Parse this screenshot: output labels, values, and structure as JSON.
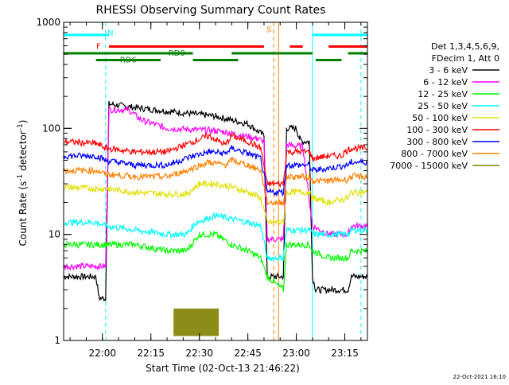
{
  "chart_data": {
    "type": "line",
    "title": "RHESSI Observing Summary Count Rates",
    "xlabel": "Start Time (02-Oct-13 21:46:22)",
    "ylabel_main": "Count Rate (s",
    "ylabel_sup1": "-1",
    "ylabel_mid": " detector",
    "ylabel_sup2": "-1",
    "ylabel_end": ")",
    "y_scale": "log",
    "ylim": [
      1,
      1000
    ],
    "xlim_minutes": [
      -12,
      82
    ],
    "x_ticks": [
      {
        "m": 0,
        "label": "22:00"
      },
      {
        "m": 15,
        "label": "22:15"
      },
      {
        "m": 30,
        "label": "22:30"
      },
      {
        "m": 45,
        "label": "22:45"
      },
      {
        "m": 60,
        "label": "23:00"
      },
      {
        "m": 75,
        "label": "23:15"
      }
    ],
    "y_ticks": [
      {
        "v": 1,
        "label": "1"
      },
      {
        "v": 10,
        "label": "10"
      },
      {
        "v": 100,
        "label": "100"
      },
      {
        "v": 1000,
        "label": "1000"
      }
    ],
    "legend": {
      "placement": "right",
      "header": [
        "Det 1,3,4,5,6,9,",
        "FDecim 1, Att 0"
      ]
    },
    "series": [
      {
        "name": "3 - 6 keV",
        "color": "#000000",
        "points": [
          [
            -12,
            4
          ],
          [
            -2,
            4
          ],
          [
            -1,
            2.5
          ],
          [
            1,
            2.5
          ],
          [
            2,
            170
          ],
          [
            8,
            160
          ],
          [
            20,
            145
          ],
          [
            35,
            130
          ],
          [
            45,
            110
          ],
          [
            48,
            95
          ],
          [
            50,
            85
          ],
          [
            51,
            4
          ],
          [
            56,
            4
          ],
          [
            57,
            100
          ],
          [
            60,
            100
          ],
          [
            61,
            80
          ],
          [
            62,
            75
          ],
          [
            64,
            75
          ],
          [
            65,
            4
          ],
          [
            66,
            3
          ],
          [
            76,
            3
          ],
          [
            77,
            4
          ],
          [
            82,
            4
          ]
        ]
      },
      {
        "name": "6 - 12 keV",
        "color": "#ff00ff",
        "points": [
          [
            -12,
            5
          ],
          [
            -2,
            5
          ],
          [
            -1,
            5
          ],
          [
            1,
            5
          ],
          [
            2,
            150
          ],
          [
            8,
            150
          ],
          [
            12,
            120
          ],
          [
            20,
            100
          ],
          [
            35,
            95
          ],
          [
            40,
            90
          ],
          [
            48,
            80
          ],
          [
            50,
            75
          ],
          [
            51,
            9
          ],
          [
            56,
            9
          ],
          [
            57,
            70
          ],
          [
            60,
            68
          ],
          [
            62,
            68
          ],
          [
            65,
            12
          ],
          [
            70,
            10
          ],
          [
            76,
            10
          ],
          [
            77,
            12
          ],
          [
            82,
            12
          ]
        ]
      },
      {
        "name": "12 - 25 keV",
        "color": "#00ff00",
        "points": [
          [
            -12,
            8
          ],
          [
            -2,
            8
          ],
          [
            0,
            8
          ],
          [
            1,
            8
          ],
          [
            2,
            8
          ],
          [
            10,
            8
          ],
          [
            20,
            7
          ],
          [
            26,
            7
          ],
          [
            30,
            10
          ],
          [
            35,
            10
          ],
          [
            40,
            8
          ],
          [
            45,
            7
          ],
          [
            49,
            6
          ],
          [
            51,
            4
          ],
          [
            56,
            3
          ],
          [
            57,
            8
          ],
          [
            64,
            8
          ],
          [
            65,
            7
          ],
          [
            70,
            6
          ],
          [
            76,
            6
          ],
          [
            77,
            7
          ],
          [
            82,
            7
          ]
        ]
      },
      {
        "name": "25 - 50 keV",
        "color": "#00ffff",
        "points": [
          [
            -12,
            13
          ],
          [
            -2,
            13
          ],
          [
            1,
            12
          ],
          [
            10,
            11
          ],
          [
            20,
            10
          ],
          [
            26,
            10
          ],
          [
            29,
            13
          ],
          [
            35,
            15
          ],
          [
            40,
            14
          ],
          [
            45,
            13
          ],
          [
            49,
            12
          ],
          [
            51,
            6
          ],
          [
            56,
            6
          ],
          [
            57,
            11
          ],
          [
            64,
            11
          ],
          [
            65,
            10
          ],
          [
            70,
            10
          ],
          [
            76,
            10
          ],
          [
            77,
            11
          ],
          [
            82,
            11
          ]
        ]
      },
      {
        "name": "50 - 100 keV",
        "color": "#e0e000",
        "points": [
          [
            -12,
            28
          ],
          [
            -2,
            27
          ],
          [
            1,
            27
          ],
          [
            10,
            25
          ],
          [
            20,
            24
          ],
          [
            26,
            24
          ],
          [
            30,
            30
          ],
          [
            35,
            30
          ],
          [
            40,
            28
          ],
          [
            45,
            25
          ],
          [
            49,
            22
          ],
          [
            51,
            13
          ],
          [
            56,
            13
          ],
          [
            57,
            25
          ],
          [
            64,
            25
          ],
          [
            65,
            22
          ],
          [
            70,
            20
          ],
          [
            76,
            22
          ],
          [
            77,
            25
          ],
          [
            82,
            25
          ]
        ]
      },
      {
        "name": "100 - 300 keV",
        "color": "#ff0000",
        "points": [
          [
            -12,
            75
          ],
          [
            -2,
            72
          ],
          [
            1,
            65
          ],
          [
            10,
            60
          ],
          [
            20,
            60
          ],
          [
            28,
            75
          ],
          [
            33,
            85
          ],
          [
            38,
            70
          ],
          [
            40,
            85
          ],
          [
            45,
            75
          ],
          [
            49,
            65
          ],
          [
            51,
            30
          ],
          [
            56,
            30
          ],
          [
            57,
            60
          ],
          [
            64,
            60
          ],
          [
            65,
            52
          ],
          [
            70,
            55
          ],
          [
            74,
            55
          ],
          [
            75,
            60
          ],
          [
            77,
            65
          ],
          [
            82,
            65
          ]
        ]
      },
      {
        "name": "300 - 800 keV",
        "color": "#0000ff",
        "points": [
          [
            -12,
            55
          ],
          [
            -2,
            55
          ],
          [
            1,
            50
          ],
          [
            10,
            45
          ],
          [
            20,
            45
          ],
          [
            28,
            55
          ],
          [
            33,
            60
          ],
          [
            38,
            58
          ],
          [
            40,
            65
          ],
          [
            45,
            58
          ],
          [
            49,
            52
          ],
          [
            51,
            25
          ],
          [
            56,
            25
          ],
          [
            57,
            45
          ],
          [
            64,
            45
          ],
          [
            65,
            40
          ],
          [
            70,
            42
          ],
          [
            76,
            45
          ],
          [
            77,
            48
          ],
          [
            82,
            48
          ]
        ]
      },
      {
        "name": "800 - 7000 keV",
        "color": "#ff8000",
        "points": [
          [
            -12,
            40
          ],
          [
            -2,
            40
          ],
          [
            1,
            37
          ],
          [
            10,
            35
          ],
          [
            20,
            35
          ],
          [
            26,
            40
          ],
          [
            33,
            48
          ],
          [
            38,
            45
          ],
          [
            40,
            50
          ],
          [
            45,
            45
          ],
          [
            49,
            40
          ],
          [
            51,
            20
          ],
          [
            56,
            20
          ],
          [
            57,
            35
          ],
          [
            64,
            35
          ],
          [
            65,
            32
          ],
          [
            70,
            32
          ],
          [
            76,
            33
          ],
          [
            77,
            35
          ],
          [
            82,
            35
          ]
        ]
      },
      {
        "name": "7000 - 15000 keV",
        "color": "#808000",
        "points": [
          [
            22,
            1.1
          ],
          [
            22,
            2
          ],
          [
            36,
            2
          ],
          [
            36,
            1.1
          ]
        ]
      }
    ],
    "annotations": [
      {
        "label": "N",
        "color": "#00ffff"
      },
      {
        "label": "F",
        "color": "#ff0000"
      },
      {
        "label": "S",
        "color": "#ff8000"
      },
      {
        "label": "RD0",
        "color": "#008000"
      },
      {
        "label": "RD6",
        "color": "#008000"
      }
    ],
    "flag_bars": [
      {
        "name": "N",
        "color": "#00ffff",
        "level": 760,
        "segments": [
          [
            -12,
            2
          ],
          [
            65,
            82
          ]
        ]
      },
      {
        "name": "F",
        "color": "#ff0000",
        "level": 590,
        "segments": [
          [
            2,
            50
          ],
          [
            58,
            62
          ],
          [
            70,
            82
          ]
        ]
      },
      {
        "name": "RD0",
        "color": "#008000",
        "level": 510,
        "segments": [
          [
            -12,
            28
          ],
          [
            40,
            65
          ],
          [
            76,
            82
          ]
        ]
      },
      {
        "name": "RD6",
        "color": "#008000",
        "level": 440,
        "segments": [
          [
            -2,
            18
          ],
          [
            28,
            42
          ],
          [
            66,
            74
          ]
        ]
      }
    ],
    "vlines": [
      {
        "m": -12,
        "color": "#00ffff",
        "style": "solid"
      },
      {
        "m": 1,
        "color": "#00ffff",
        "style": "dashed"
      },
      {
        "m": 53,
        "color": "#ff8000",
        "style": "dashed"
      },
      {
        "m": 54.5,
        "color": "#ff8000",
        "style": "solid"
      },
      {
        "m": 65,
        "color": "#00ffff",
        "style": "solid"
      },
      {
        "m": 80,
        "color": "#00ffff",
        "style": "dashed"
      }
    ],
    "footer_stamp": "22-Oct-2021 16:10"
  }
}
